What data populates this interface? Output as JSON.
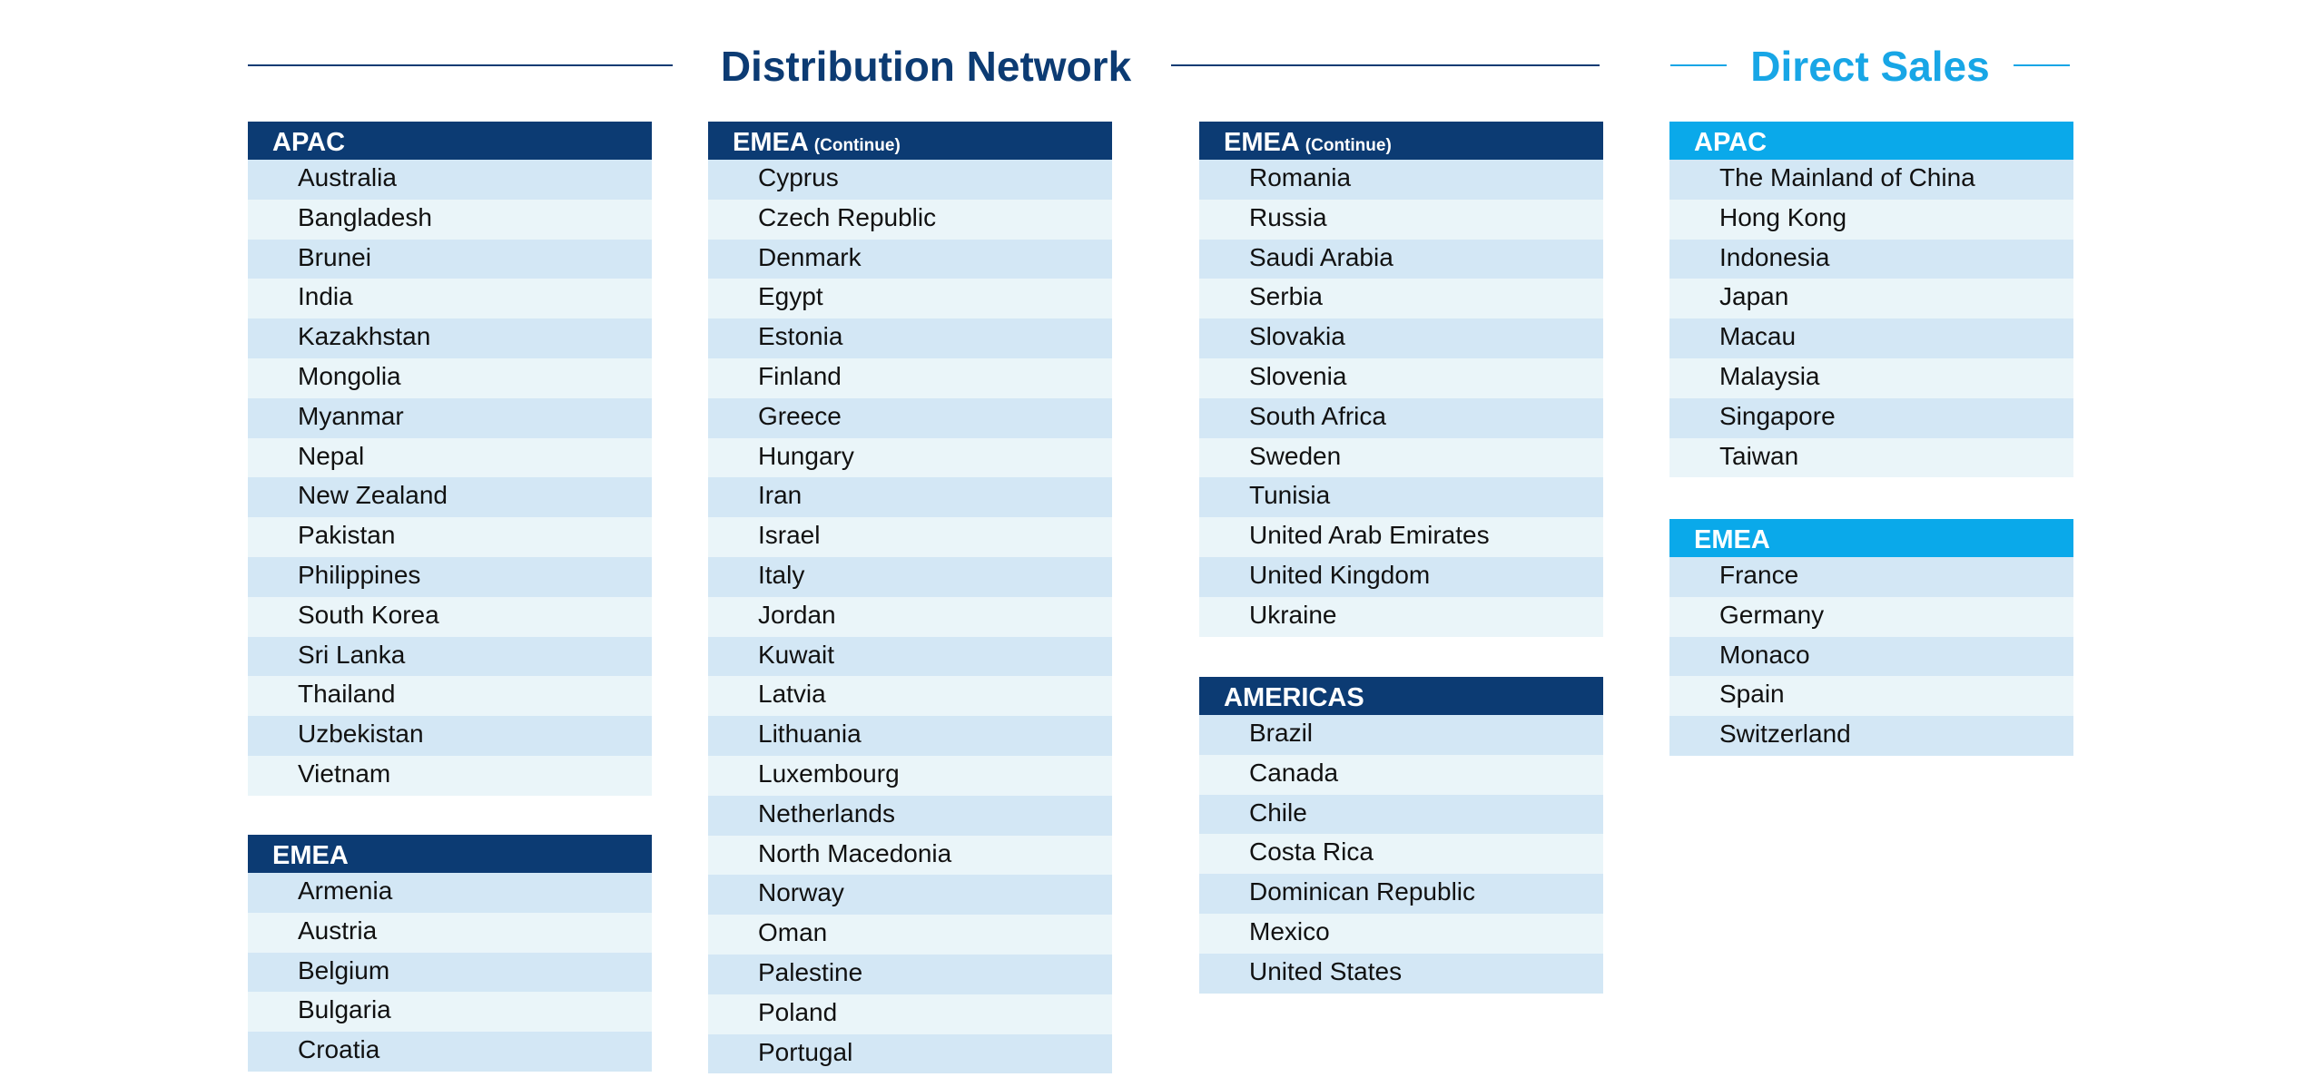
{
  "distribution": {
    "title": "Distribution Network"
  },
  "direct": {
    "title": "Direct Sales"
  },
  "continue_label": "(Continue)",
  "blocks": {
    "apac": {
      "header": "APAC",
      "items": [
        "Australia",
        "Bangladesh",
        "Brunei",
        "India",
        "Kazakhstan",
        "Mongolia",
        "Myanmar",
        "Nepal",
        "New Zealand",
        "Pakistan",
        "Philippines",
        "South Korea",
        "Sri Lanka",
        "Thailand",
        "Uzbekistan",
        "Vietnam"
      ]
    },
    "emea1": {
      "header": "EMEA",
      "items": [
        "Armenia",
        "Austria",
        "Belgium",
        "Bulgaria",
        "Croatia"
      ]
    },
    "emea2": {
      "header": "EMEA",
      "items": [
        "Cyprus",
        "Czech Republic",
        "Denmark",
        "Egypt",
        "Estonia",
        "Finland",
        "Greece",
        "Hungary",
        "Iran",
        "Israel",
        "Italy",
        "Jordan",
        "Kuwait",
        "Latvia",
        "Lithuania",
        "Luxembourg",
        "Netherlands",
        "North Macedonia",
        "Norway",
        "Oman",
        "Palestine",
        "Poland",
        "Portugal"
      ]
    },
    "emea3": {
      "header": "EMEA",
      "items": [
        "Romania",
        "Russia",
        "Saudi Arabia",
        "Serbia",
        "Slovakia",
        "Slovenia",
        "South Africa",
        "Sweden",
        "Tunisia",
        "United Arab Emirates",
        "United Kingdom",
        "Ukraine"
      ]
    },
    "americas": {
      "header": "AMERICAS",
      "items": [
        "Brazil",
        "Canada",
        "Chile",
        "Costa Rica",
        "Dominican Republic",
        "Mexico",
        "United States"
      ]
    },
    "direct_apac": {
      "header": "APAC",
      "items": [
        "The Mainland of China",
        "Hong Kong",
        "Indonesia",
        "Japan",
        "Macau",
        "Malaysia",
        "Singapore",
        "Taiwan"
      ]
    },
    "direct_emea": {
      "header": "EMEA",
      "items": [
        "France",
        "Germany",
        "Monaco",
        "Spain",
        "Switzerland"
      ]
    }
  },
  "colors": {
    "navy": "#0c3b73",
    "cyan": "#0aa9ea",
    "row_dark": "#d3e7f5",
    "row_light": "#eaf5f9"
  }
}
